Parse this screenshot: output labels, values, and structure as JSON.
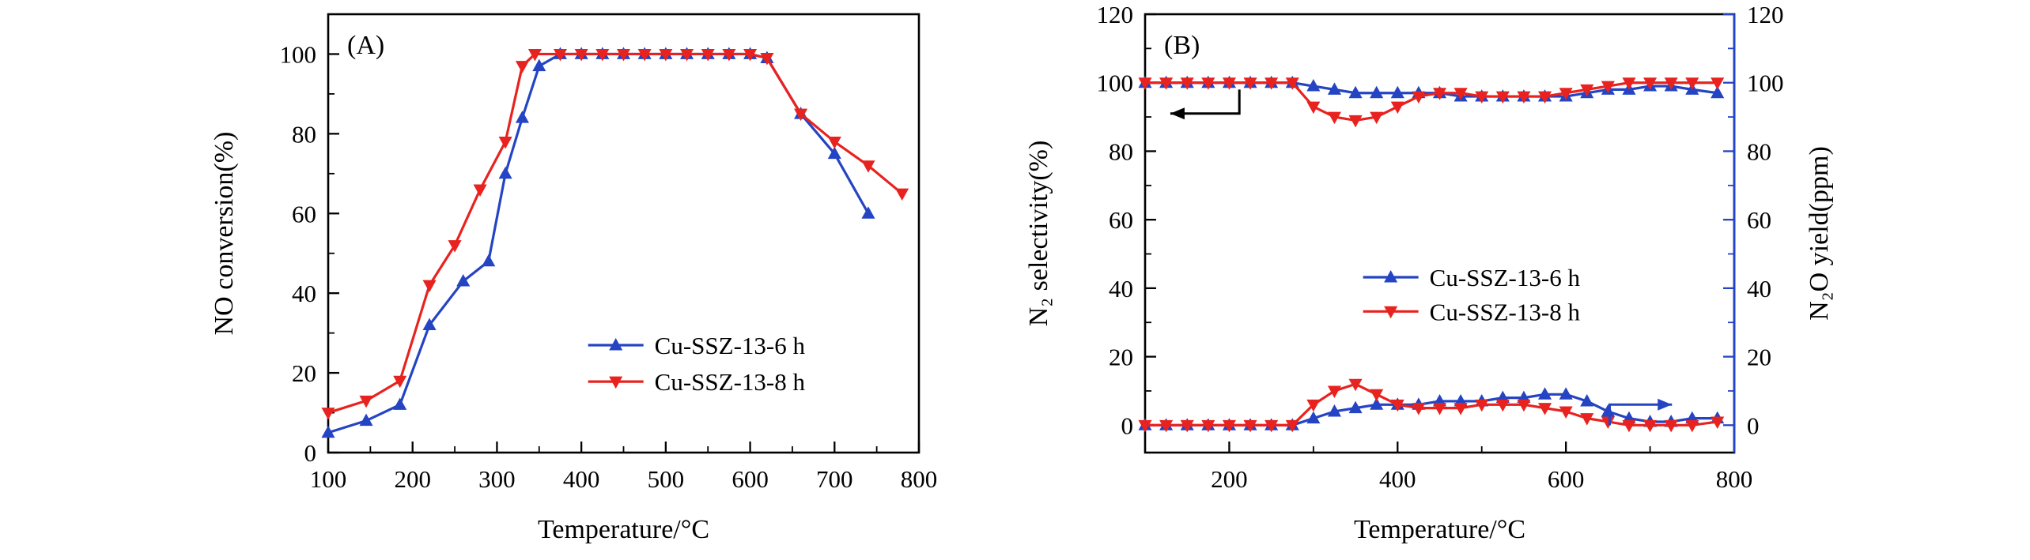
{
  "figure": {
    "background": "#ffffff",
    "palette": {
      "blue": "#2444c4",
      "red": "#e8231f",
      "black": "#000000"
    }
  },
  "chart_data": [
    {
      "id": "panel-a",
      "type": "line",
      "panel_label": "(A)",
      "title": "",
      "xlabel": "Temperature/°C",
      "ylabel": "NO conversion(%)",
      "xlim": [
        100,
        800
      ],
      "ylim": [
        0,
        110
      ],
      "xticks": [
        100,
        200,
        300,
        400,
        500,
        600,
        700,
        800
      ],
      "yticks": [
        0,
        20,
        40,
        60,
        80,
        100
      ],
      "x_minor_step": 50,
      "y_minor_step": 10,
      "grid": false,
      "legend_position": "inside-lower-right",
      "series": [
        {
          "name": "Cu-SSZ-13-6 h",
          "color": "blue",
          "marker": "triangle-up",
          "in_legend": true,
          "x": [
            100,
            145,
            185,
            220,
            260,
            290,
            310,
            330,
            350,
            375,
            400,
            425,
            450,
            475,
            500,
            525,
            550,
            575,
            600,
            620,
            660,
            700,
            740
          ],
          "y": [
            5,
            8,
            12,
            32,
            43,
            48,
            70,
            84,
            97,
            100,
            100,
            100,
            100,
            100,
            100,
            100,
            100,
            100,
            100,
            99,
            85,
            75,
            60
          ]
        },
        {
          "name": "Cu-SSZ-13-8 h",
          "color": "red",
          "marker": "triangle-down",
          "in_legend": true,
          "x": [
            100,
            145,
            185,
            220,
            250,
            280,
            310,
            330,
            345,
            375,
            400,
            425,
            450,
            475,
            500,
            525,
            550,
            575,
            600,
            620,
            660,
            700,
            740,
            780
          ],
          "y": [
            10,
            13,
            18,
            42,
            52,
            66,
            78,
            97,
            100,
            100,
            100,
            100,
            100,
            100,
            100,
            100,
            100,
            100,
            100,
            99,
            85,
            78,
            72,
            65
          ]
        }
      ],
      "annotations": []
    },
    {
      "id": "panel-b",
      "type": "line",
      "panel_label": "(B)",
      "title": "",
      "xlabel": "Temperature/°C",
      "ylabel": "N₂ selectivity(%)",
      "ylabel_right": "N₂O yield(ppm)",
      "xlim": [
        100,
        800
      ],
      "ylim": [
        -8,
        120
      ],
      "ylim_right": [
        -8,
        120
      ],
      "xticks": [
        200,
        400,
        600,
        800
      ],
      "yticks": [
        0,
        20,
        40,
        60,
        80,
        100,
        120
      ],
      "yticks_right": [
        0,
        20,
        40,
        60,
        80,
        100,
        120
      ],
      "x_minor_step": 100,
      "y_minor_step": 10,
      "grid": false,
      "right_axis_color": "blue",
      "legend_position": "inside-middle-right",
      "series": [
        {
          "name": "Cu-SSZ-13-6 h",
          "quantity": "N₂ selectivity",
          "axis": "left",
          "color": "blue",
          "marker": "triangle-up",
          "in_legend": true,
          "x": [
            100,
            125,
            150,
            175,
            200,
            225,
            250,
            275,
            300,
            325,
            350,
            375,
            400,
            425,
            450,
            475,
            500,
            525,
            550,
            575,
            600,
            625,
            650,
            675,
            700,
            725,
            750,
            780
          ],
          "y": [
            100,
            100,
            100,
            100,
            100,
            100,
            100,
            100,
            99,
            98,
            97,
            97,
            97,
            97,
            97,
            96,
            96,
            96,
            96,
            96,
            96,
            97,
            98,
            98,
            99,
            99,
            98,
            97
          ]
        },
        {
          "name": "Cu-SSZ-13-8 h",
          "quantity": "N₂ selectivity",
          "axis": "left",
          "color": "red",
          "marker": "triangle-down",
          "in_legend": true,
          "x": [
            100,
            125,
            150,
            175,
            200,
            225,
            250,
            275,
            300,
            325,
            350,
            375,
            400,
            425,
            450,
            475,
            500,
            525,
            550,
            575,
            600,
            625,
            650,
            675,
            700,
            725,
            750,
            780
          ],
          "y": [
            100,
            100,
            100,
            100,
            100,
            100,
            100,
            100,
            93,
            90,
            89,
            90,
            93,
            96,
            97,
            97,
            96,
            96,
            96,
            96,
            97,
            98,
            99,
            100,
            100,
            100,
            100,
            100
          ]
        },
        {
          "name": "Cu-SSZ-13-6 h",
          "quantity": "N₂O yield",
          "axis": "right",
          "color": "blue",
          "marker": "triangle-up",
          "in_legend": false,
          "x": [
            100,
            125,
            150,
            175,
            200,
            225,
            250,
            275,
            300,
            325,
            350,
            375,
            400,
            425,
            450,
            475,
            500,
            525,
            550,
            575,
            600,
            625,
            650,
            675,
            700,
            725,
            750,
            780
          ],
          "y": [
            0,
            0,
            0,
            0,
            0,
            0,
            0,
            0,
            2,
            4,
            5,
            6,
            6,
            6,
            7,
            7,
            7,
            8,
            8,
            9,
            9,
            7,
            4,
            2,
            1,
            1,
            2,
            2
          ]
        },
        {
          "name": "Cu-SSZ-13-8 h",
          "quantity": "N₂O yield",
          "axis": "right",
          "color": "red",
          "marker": "triangle-down",
          "in_legend": false,
          "x": [
            100,
            125,
            150,
            175,
            200,
            225,
            250,
            275,
            300,
            325,
            350,
            375,
            400,
            425,
            450,
            475,
            500,
            525,
            550,
            575,
            600,
            625,
            650,
            675,
            700,
            725,
            750,
            780
          ],
          "y": [
            0,
            0,
            0,
            0,
            0,
            0,
            0,
            0,
            6,
            10,
            12,
            9,
            6,
            5,
            5,
            5,
            6,
            6,
            6,
            5,
            4,
            2,
            1,
            0,
            0,
            0,
            0,
            1
          ]
        }
      ],
      "annotations": [
        {
          "type": "elbow-arrow",
          "name": "left-axis-indicator-arrow",
          "color": "black",
          "points": [
            [
              212,
              98
            ],
            [
              212,
              91
            ],
            [
              130,
              91
            ]
          ]
        },
        {
          "type": "elbow-arrow",
          "name": "right-axis-indicator-arrow",
          "color": "blue",
          "points": [
            [
              652,
              0
            ],
            [
              652,
              6
            ],
            [
              726,
              6
            ]
          ]
        }
      ]
    }
  ]
}
